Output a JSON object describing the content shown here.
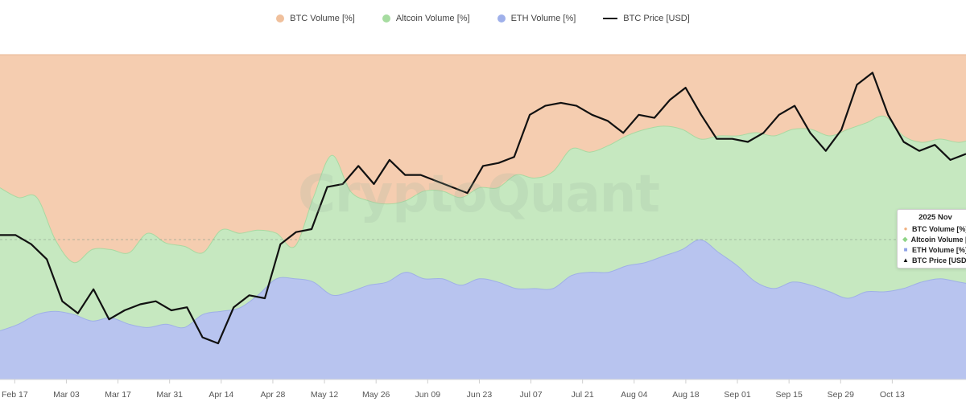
{
  "legend": {
    "btc_volume": "BTC Volume [%]",
    "altcoin_volume": "Altcoin Volume [%]",
    "eth_volume": "ETH Volume [%]",
    "btc_price": "BTC Price [USD]"
  },
  "watermark": "CryptoQuant",
  "tooltip": {
    "date": "2025 Nov",
    "rows": [
      "BTC Volume [%]",
      "Altcoin Volume [%]",
      "ETH Volume [%]",
      "BTC Price [USD]"
    ]
  },
  "colors": {
    "btc_volume": "#f5cdb0",
    "altcoin_volume": "#c6e8c0",
    "eth_volume": "#b8c4ef",
    "btc_price": "#111111",
    "legend_btc": "#f0c09c",
    "legend_alt": "#a6dca0",
    "legend_eth": "#9fb0ea"
  },
  "chart_data": {
    "type": "area",
    "stacked": true,
    "x_tick_labels": [
      "Feb 17",
      "Mar 03",
      "Mar 17",
      "Mar 31",
      "Apr 14",
      "Apr 28",
      "May 12",
      "May 26",
      "Jun 09",
      "Jun 23",
      "Jul 07",
      "Jul 21",
      "Aug 04",
      "Aug 18",
      "Sep 01",
      "Sep 15",
      "Sep 29",
      "Oct 13"
    ],
    "x": [
      0,
      5,
      10,
      15,
      20,
      25,
      30,
      35,
      40,
      45,
      50,
      55,
      60,
      65,
      70,
      75,
      80,
      85,
      90,
      95,
      100,
      105,
      110,
      115,
      120,
      125,
      130,
      135,
      140,
      145,
      150,
      155,
      160,
      165,
      170,
      175,
      180,
      185,
      190,
      195,
      200,
      205,
      210,
      215,
      220,
      225,
      230,
      235,
      240,
      245,
      250,
      255,
      260,
      265,
      270
    ],
    "series": [
      {
        "name": "ETH Volume [%]",
        "values": [
          15,
          17,
          20,
          21,
          20,
          18,
          19,
          17,
          16,
          17,
          16,
          20,
          21,
          22,
          26,
          31,
          31,
          30,
          26,
          27,
          29,
          30,
          33,
          31,
          31,
          29,
          31,
          30,
          28,
          28,
          28,
          32,
          33,
          33,
          35,
          36,
          38,
          40,
          43,
          39,
          35,
          30,
          28,
          30,
          29,
          27,
          25,
          27,
          27,
          28,
          30,
          31,
          30,
          29,
          28
        ]
      },
      {
        "name": "Altcoin Volume [%]",
        "values": [
          59,
          56,
          56,
          43,
          36,
          40,
          40,
          39,
          45,
          42,
          41,
          39,
          46,
          45,
          46,
          45,
          41,
          56,
          69,
          58,
          55,
          54,
          55,
          58,
          58,
          56,
          59,
          59,
          63,
          62,
          64,
          71,
          70,
          72,
          75,
          77,
          78,
          77,
          74,
          75,
          75,
          76,
          75,
          77,
          77,
          75,
          77,
          79,
          81,
          75,
          73,
          74,
          73,
          74,
          72
        ]
      },
      {
        "name": "BTC Volume [%]",
        "values": [
          100,
          100,
          100,
          100,
          100,
          100,
          100,
          100,
          100,
          100,
          100,
          100,
          100,
          100,
          100,
          100,
          100,
          100,
          100,
          100,
          100,
          100,
          100,
          100,
          100,
          100,
          100,
          100,
          100,
          100,
          100,
          100,
          100,
          100,
          100,
          100,
          100,
          100,
          100,
          100,
          100,
          100,
          100,
          100,
          100,
          100,
          100,
          100,
          100,
          100,
          100,
          100,
          100,
          100,
          100
        ]
      }
    ],
    "price_series": {
      "name": "BTC Price [USD]",
      "values": [
        96000,
        96000,
        94500,
        92000,
        85000,
        83000,
        87000,
        82000,
        83500,
        84500,
        85000,
        83500,
        84000,
        79000,
        78000,
        84000,
        86000,
        85500,
        94500,
        96500,
        97000,
        104000,
        104500,
        107500,
        104500,
        108500,
        106000,
        106000,
        105000,
        104000,
        103000,
        107500,
        108000,
        109000,
        116000,
        117500,
        118000,
        117500,
        116000,
        115000,
        113000,
        116000,
        115500,
        118500,
        120500,
        116000,
        112000,
        112000,
        111500,
        113000,
        116000,
        117500,
        113000,
        110000,
        113500,
        121000,
        123000,
        116000,
        111500,
        110000,
        111000,
        108500,
        109500
      ]
    },
    "price_x_note": "price sampled on the same day grid extended to 310",
    "ylim": [
      0,
      100
    ],
    "price_ylim": [
      72000,
      126000
    ],
    "grid": false,
    "legend_position": "top-center"
  }
}
